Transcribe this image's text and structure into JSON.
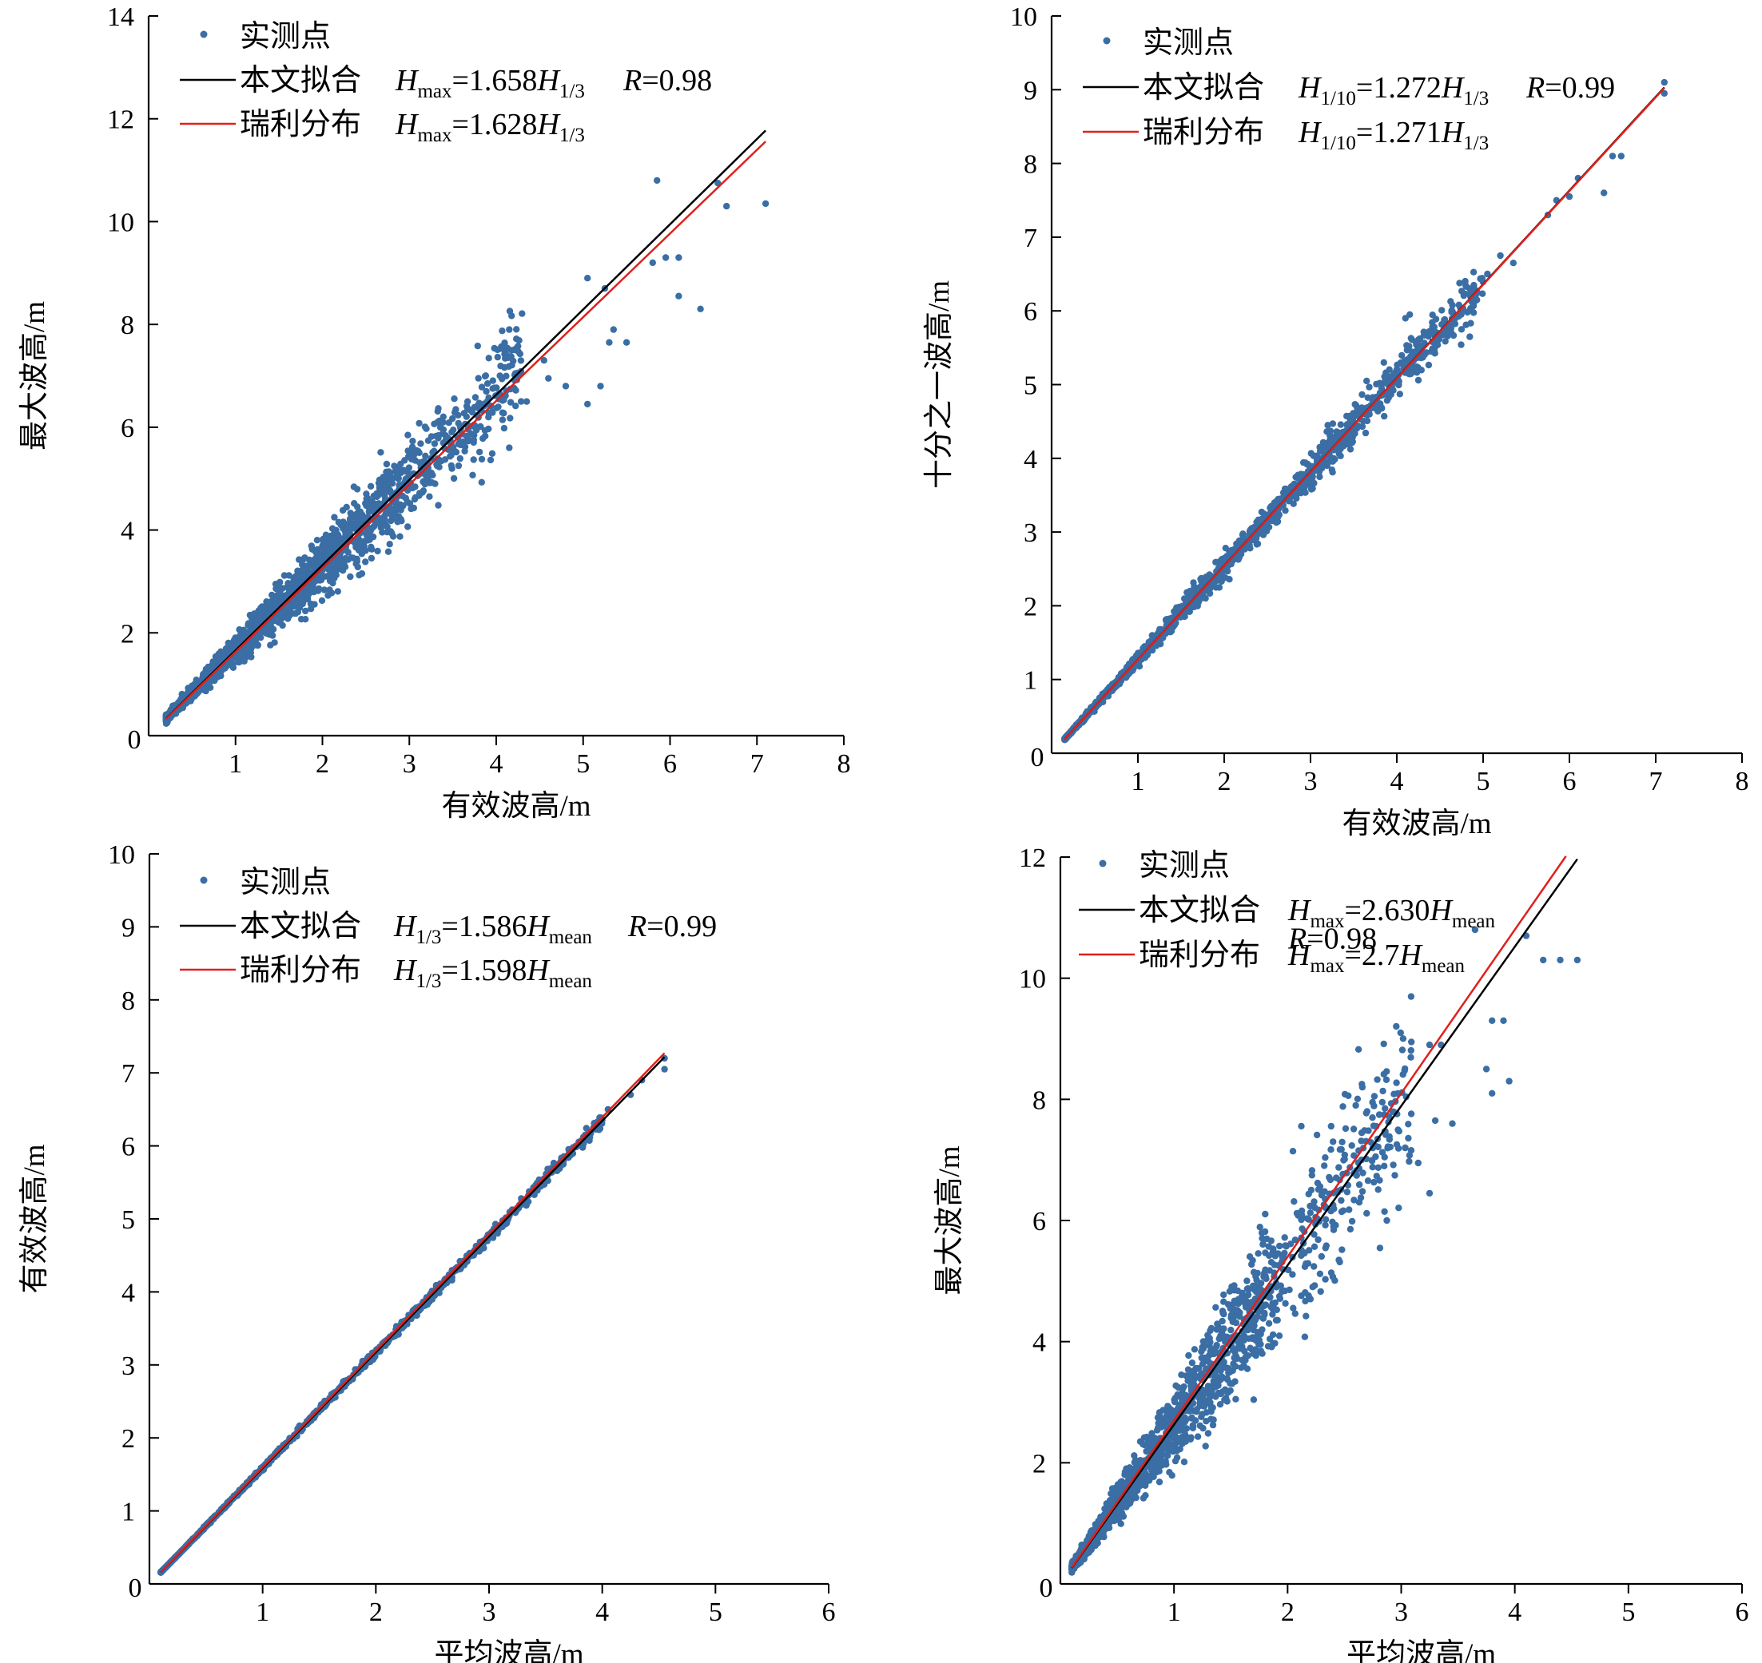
{
  "chart_data": [
    {
      "type": "scatter",
      "id": "a",
      "xlabel": "有效波高/m",
      "ylabel": "最大波高/m",
      "xlim": [
        0,
        8
      ],
      "ylim": [
        0,
        14
      ],
      "xticks": [
        0,
        1,
        2,
        3,
        4,
        5,
        6,
        7,
        8
      ],
      "yticks": [
        0,
        2,
        4,
        6,
        8,
        10,
        12,
        14
      ],
      "series": [
        {
          "name": "实测点",
          "kind": "points",
          "color": "#3a6ea5",
          "outliers": [
            [
              5.85,
              10.8
            ],
            [
              6.55,
              10.75
            ],
            [
              6.65,
              10.3
            ],
            [
              7.1,
              10.35
            ],
            [
              5.95,
              9.3
            ],
            [
              6.1,
              9.3
            ],
            [
              5.8,
              9.2
            ],
            [
              6.1,
              8.55
            ],
            [
              6.35,
              8.3
            ],
            [
              5.05,
              8.9
            ],
            [
              5.25,
              8.7
            ],
            [
              5.35,
              7.9
            ],
            [
              5.3,
              7.65
            ],
            [
              5.5,
              7.65
            ],
            [
              5.2,
              6.8
            ],
            [
              5.05,
              6.45
            ],
            [
              4.15,
              7.9
            ],
            [
              4.55,
              7.3
            ],
            [
              4.6,
              6.95
            ],
            [
              4.8,
              6.8
            ],
            [
              4.35,
              6.5
            ],
            [
              4.15,
              5.6
            ]
          ]
        },
        {
          "name": "本文拟合",
          "kind": "fit",
          "color": "#000000",
          "slope": 1.658,
          "x_range": [
            0.2,
            7.1
          ]
        },
        {
          "name": "瑞利分布",
          "kind": "fit",
          "color": "#e0201b",
          "slope": 1.628,
          "x_range": [
            0.2,
            7.1
          ]
        }
      ],
      "legend": [
        {
          "label": "实测点",
          "eq": []
        },
        {
          "label": "本文拟合",
          "eq": [
            "H",
            "max",
            "=1.658",
            "H",
            "1/3"
          ],
          "r": "R",
          "rval": "=0.98"
        },
        {
          "label": "瑞利分布",
          "eq": [
            "H",
            "max",
            "=1.628",
            "H",
            "1/3"
          ]
        }
      ]
    },
    {
      "type": "scatter",
      "id": "b",
      "xlabel": "有效波高/m",
      "ylabel": "十分之一波高/m",
      "xlim": [
        0,
        8
      ],
      "ylim": [
        0,
        10
      ],
      "xticks": [
        0,
        1,
        2,
        3,
        4,
        5,
        6,
        7,
        8
      ],
      "yticks": [
        0,
        1,
        2,
        3,
        4,
        5,
        6,
        7,
        8,
        9,
        10
      ],
      "series": [
        {
          "name": "实测点",
          "kind": "points",
          "color": "#3a6ea5",
          "outliers": [
            [
              7.1,
              9.1
            ],
            [
              7.1,
              8.95
            ],
            [
              6.5,
              8.1
            ],
            [
              6.6,
              8.1
            ],
            [
              6.1,
              7.8
            ],
            [
              5.85,
              7.5
            ],
            [
              6.0,
              7.55
            ],
            [
              5.75,
              7.3
            ],
            [
              6.4,
              7.6
            ],
            [
              5.2,
              6.75
            ],
            [
              5.35,
              6.65
            ],
            [
              5.05,
              6.5
            ],
            [
              4.15,
              5.95
            ],
            [
              4.1,
              5.9
            ],
            [
              4.4,
              5.45
            ],
            [
              3.85,
              5.3
            ],
            [
              3.65,
              5.05
            ],
            [
              3.2,
              4.45
            ]
          ]
        },
        {
          "name": "本文拟合",
          "kind": "fit",
          "color": "#000000",
          "slope": 1.272,
          "x_range": [
            0.15,
            7.1
          ]
        },
        {
          "name": "瑞利分布",
          "kind": "fit",
          "color": "#e0201b",
          "slope": 1.271,
          "x_range": [
            0.15,
            7.1
          ]
        }
      ],
      "legend": [
        {
          "label": "实测点",
          "eq": []
        },
        {
          "label": "本文拟合",
          "eq": [
            "H",
            "1/10",
            "=1.272",
            "H",
            "1/3"
          ],
          "r": "R",
          "rval": "=0.99"
        },
        {
          "label": "瑞利分布",
          "eq": [
            "H",
            "1/10",
            "=1.271",
            "H",
            "1/3"
          ]
        }
      ]
    },
    {
      "type": "scatter",
      "id": "c",
      "xlabel": "平均波高/m",
      "ylabel": "有效波高/m",
      "xlim": [
        0,
        6
      ],
      "ylim": [
        0,
        10
      ],
      "xticks": [
        0,
        1,
        2,
        3,
        4,
        5,
        6
      ],
      "yticks": [
        0,
        1,
        2,
        3,
        4,
        5,
        6,
        7,
        8,
        9,
        10
      ],
      "series": [
        {
          "name": "实测点",
          "kind": "points",
          "color": "#3a6ea5",
          "outliers": [
            [
              4.55,
              7.2
            ],
            [
              4.55,
              7.05
            ],
            [
              4.35,
              6.9
            ],
            [
              4.25,
              6.7
            ],
            [
              4.05,
              6.5
            ],
            [
              3.85,
              6.15
            ],
            [
              3.5,
              5.55
            ],
            [
              3.25,
              5.15
            ],
            [
              2.85,
              4.5
            ],
            [
              2.65,
              4.2
            ],
            [
              2.45,
              3.9
            ]
          ]
        },
        {
          "name": "本文拟合",
          "kind": "fit",
          "color": "#000000",
          "slope": 1.586,
          "x_range": [
            0.1,
            4.55
          ]
        },
        {
          "name": "瑞利分布",
          "kind": "fit",
          "color": "#e0201b",
          "slope": 1.598,
          "x_range": [
            0.1,
            4.55
          ]
        }
      ],
      "legend": [
        {
          "label": "实测点",
          "eq": []
        },
        {
          "label": "本文拟合",
          "eq": [
            "H",
            "1/3",
            "=1.586",
            "H",
            "mean"
          ],
          "r": "R",
          "rval": "=0.99"
        },
        {
          "label": "瑞利分布",
          "eq": [
            "H",
            "1/3",
            "=1.598",
            "H",
            "mean"
          ]
        }
      ]
    },
    {
      "type": "scatter",
      "id": "d",
      "xlabel": "平均波高/m",
      "ylabel": "最大波高/m",
      "xlim": [
        0,
        6
      ],
      "ylim": [
        0,
        12
      ],
      "xticks": [
        0,
        1,
        2,
        3,
        4,
        5,
        6
      ],
      "yticks": [
        0,
        2,
        4,
        6,
        8,
        10,
        12
      ],
      "series": [
        {
          "name": "实测点",
          "kind": "points",
          "color": "#3a6ea5",
          "outliers": [
            [
              4.25,
              10.3
            ],
            [
              4.4,
              10.3
            ],
            [
              4.55,
              10.3
            ],
            [
              4.1,
              10.7
            ],
            [
              3.65,
              10.8
            ],
            [
              3.8,
              9.3
            ],
            [
              3.9,
              9.3
            ],
            [
              3.25,
              8.9
            ],
            [
              3.35,
              8.9
            ],
            [
              3.95,
              8.3
            ],
            [
              3.75,
              8.5
            ],
            [
              3.8,
              8.1
            ],
            [
              3.3,
              7.65
            ],
            [
              3.45,
              7.6
            ],
            [
              2.6,
              7.9
            ],
            [
              2.7,
              7.8
            ],
            [
              2.4,
              7.3
            ],
            [
              3.25,
              6.45
            ],
            [
              3.15,
              6.95
            ],
            [
              2.85,
              6.9
            ]
          ]
        },
        {
          "name": "本文拟合",
          "kind": "fit",
          "color": "#000000",
          "slope": 2.63,
          "x_range": [
            0.1,
            4.55
          ]
        },
        {
          "name": "瑞利分布",
          "kind": "fit",
          "color": "#e0201b",
          "slope": 2.7,
          "x_range": [
            0.1,
            4.45
          ]
        }
      ],
      "legend": [
        {
          "label": "实测点",
          "eq": []
        },
        {
          "label": "本文拟合",
          "eq": [
            "H",
            "max",
            "=2.630",
            "H",
            "mean"
          ],
          "r": "R",
          "rval": "=0.98",
          "r_newline": true
        },
        {
          "label": "瑞利分布",
          "eq": [
            "H",
            "max",
            "=2.7",
            "H",
            "mean"
          ]
        }
      ]
    }
  ]
}
